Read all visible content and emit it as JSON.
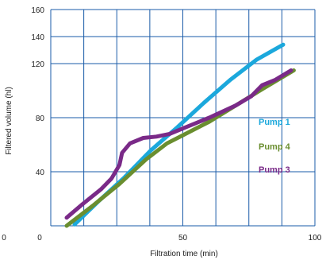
{
  "chart_data": {
    "type": "line",
    "title": "",
    "xlabel": "Filtration time (min)",
    "ylabel": "Filtered volume (hl)",
    "xlim": [
      0,
      100
    ],
    "ylim": [
      0,
      160
    ],
    "grid": true,
    "legend_position": "right",
    "colors": {
      "grid": "#1a5ba8",
      "axis": "#1a5ba8"
    },
    "x_ticks": [
      {
        "value": 0,
        "label": "0"
      },
      {
        "value": 50,
        "label": "50"
      },
      {
        "value": 100,
        "label": "100"
      }
    ],
    "x_gridlines": [
      0,
      12.5,
      25,
      37.5,
      50,
      62.5,
      75,
      87.5,
      100
    ],
    "y_ticks": [
      {
        "value": 40,
        "label": "40"
      },
      {
        "value": 80,
        "label": "80"
      },
      {
        "value": 120,
        "label": "120"
      },
      {
        "value": 140,
        "label": "140"
      },
      {
        "value": 160,
        "label": "160"
      }
    ],
    "y_gridlines": [
      0,
      40,
      80,
      120,
      140,
      160
    ],
    "extra_labels": [
      {
        "text": "0"
      }
    ],
    "series": [
      {
        "name": "Pump 1",
        "color": "#1ba8dc",
        "points": [
          [
            9,
            1
          ],
          [
            18,
            18
          ],
          [
            28,
            36
          ],
          [
            38,
            56
          ],
          [
            48,
            73
          ],
          [
            58,
            91
          ],
          [
            68,
            108
          ],
          [
            78,
            123
          ],
          [
            88,
            134
          ]
        ]
      },
      {
        "name": "Pump 4",
        "color": "#6a8e2f",
        "points": [
          [
            6,
            0
          ],
          [
            16,
            15
          ],
          [
            26,
            31
          ],
          [
            36,
            49
          ],
          [
            44,
            61
          ],
          [
            50,
            67
          ],
          [
            60,
            77
          ],
          [
            70,
            89
          ],
          [
            80,
            101
          ],
          [
            92,
            115
          ]
        ]
      },
      {
        "name": "Pump 3",
        "color": "#7a2a88",
        "points": [
          [
            6,
            6
          ],
          [
            12,
            16
          ],
          [
            19,
            27
          ],
          [
            23,
            35
          ],
          [
            26,
            45
          ],
          [
            27,
            54
          ],
          [
            30,
            61
          ],
          [
            35,
            65
          ],
          [
            40,
            66
          ],
          [
            45,
            68
          ],
          [
            50,
            72
          ],
          [
            60,
            80
          ],
          [
            70,
            89
          ],
          [
            76,
            96
          ],
          [
            80,
            104
          ],
          [
            85,
            108
          ],
          [
            91,
            115
          ]
        ]
      }
    ]
  }
}
